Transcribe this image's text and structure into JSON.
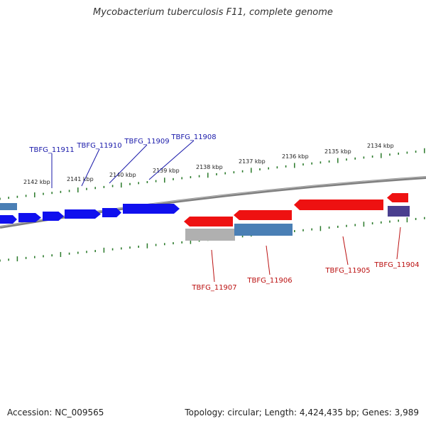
{
  "title": "Mycobacterium tuberculosis F11, complete genome",
  "footer": {
    "accession": "Accession: NC_009565",
    "summary": "Topology: circular; Length: 4,424,435 bp; Genes: 3,989"
  },
  "ticks": [
    {
      "label": "2142 kbp"
    },
    {
      "label": "2141 kbp"
    },
    {
      "label": "2140 kbp"
    },
    {
      "label": "2139 kbp"
    },
    {
      "label": "2138 kbp"
    },
    {
      "label": "2137 kbp"
    },
    {
      "label": "2136 kbp"
    },
    {
      "label": "2135 kbp"
    },
    {
      "label": "2134 kbp"
    }
  ],
  "gene_labels": [
    {
      "name": "TBFG_11911",
      "strand": "forward"
    },
    {
      "name": "TBFG_11910",
      "strand": "forward"
    },
    {
      "name": "TBFG_11909",
      "strand": "forward"
    },
    {
      "name": "TBFG_11908",
      "strand": "forward"
    },
    {
      "name": "TBFG_11907",
      "strand": "reverse"
    },
    {
      "name": "TBFG_11906",
      "strand": "reverse"
    },
    {
      "name": "TBFG_11905",
      "strand": "reverse"
    },
    {
      "name": "TBFG_11904",
      "strand": "reverse"
    }
  ],
  "colors": {
    "forward_gene": "#1010ee",
    "forward_label": "#1a1aaa",
    "reverse_gene": "#ee1111",
    "reverse_label": "#bb1111",
    "pseudo_blue": "#4a7fb5",
    "pseudo_dark": "#4a3f8f",
    "pseudo_gray": "#b0b0b0",
    "backbone": "#808080",
    "ticks": "#2a7a2a"
  }
}
